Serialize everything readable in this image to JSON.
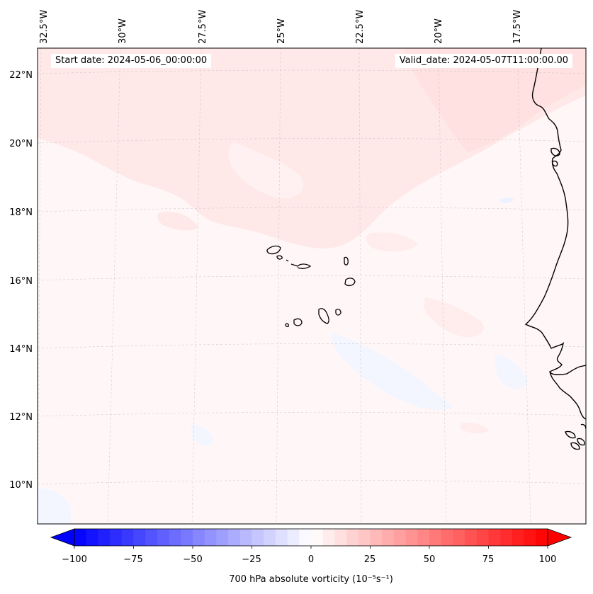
{
  "map": {
    "start_date_label": "Start date: 2024-05-06_00:00:00",
    "valid_date_label": "Valid_date: 2024-05-07T11:00:00.00",
    "lon_labels": [
      "32.5°W",
      "30°W",
      "27.5°W",
      "25°W",
      "22.5°W",
      "20°W",
      "17.5°W"
    ],
    "lat_labels": [
      "22°N",
      "20°N",
      "18°N",
      "16°N",
      "14°N",
      "12°N",
      "10°N"
    ],
    "colorbar": {
      "label": "700 hPa absolute vorticity (10⁻⁵s⁻¹)",
      "ticks": [
        "−100",
        "−75",
        "−50",
        "−25",
        "0",
        "25",
        "50",
        "75",
        "100"
      ],
      "min": -100,
      "max": 100,
      "step": 5,
      "low_color": "#0000ff",
      "high_color": "#ff0000",
      "extend": "both"
    },
    "colors": {
      "background_field": "#fff7f7",
      "positive_pale": "#ffe8e8",
      "negative_pale": "#f4f6ff",
      "coastline": "#000000"
    }
  }
}
